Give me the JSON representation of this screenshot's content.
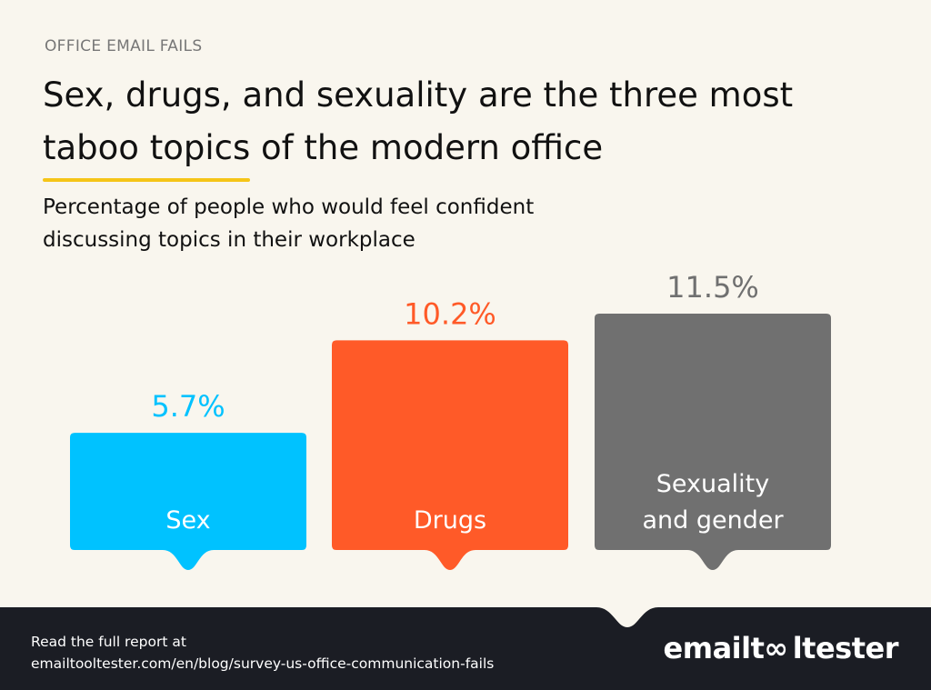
{
  "kicker": "OFFICE EMAIL FAILS",
  "title": {
    "before": "Sex, drugs, and sexuality are the three most ",
    "highlight": "taboo topics",
    "after": " of the modern office",
    "highlight_color": "#f5c518"
  },
  "subtitle": {
    "line1": "Percentage of people who would feel confident",
    "line2": "discussing topics in their workplace"
  },
  "chart_data": {
    "type": "bar",
    "categories": [
      [
        "Sex"
      ],
      [
        "Drugs"
      ],
      [
        "Sexuality",
        "and gender"
      ]
    ],
    "values": [
      5.7,
      10.2,
      11.5
    ],
    "value_labels": [
      "5.7%",
      "10.2%",
      "11.5%"
    ],
    "colors": [
      "#00c2ff",
      "#ff5a28",
      "#707070"
    ],
    "value_label_colors": [
      "#00c2ff",
      "#ff5a28",
      "#707070"
    ],
    "ylim": [
      0,
      11.5
    ],
    "grid": false
  },
  "footer": {
    "line1": "Read the full report at",
    "line2": "emailtooltester.com/en/blog/survey-us-office-communication-fails",
    "logo": "emailtooltester"
  }
}
